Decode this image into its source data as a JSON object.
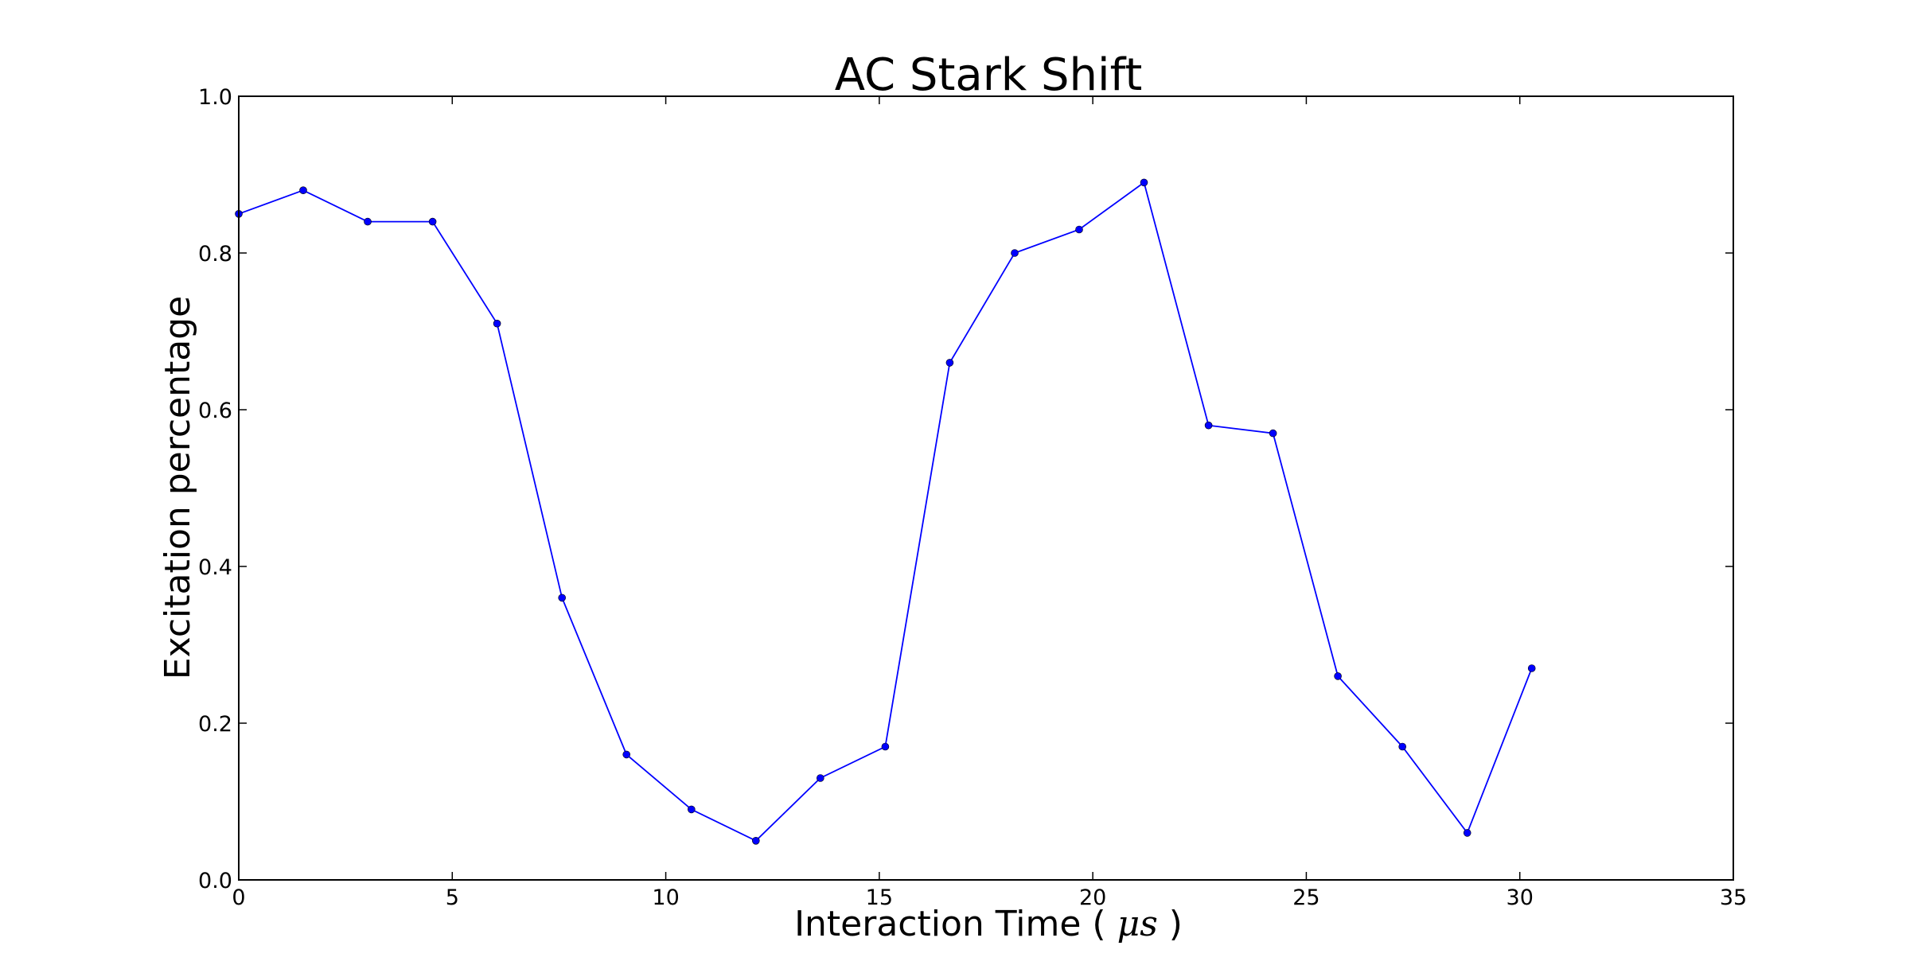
{
  "chart_data": {
    "type": "line",
    "title": "AC Stark Shift",
    "xlabel_prefix": "Interaction Time ( ",
    "xlabel_unit": "μs",
    "xlabel_suffix": " )",
    "ylabel": "Excitation percentage",
    "xlim": [
      0,
      35
    ],
    "ylim": [
      0.0,
      1.0
    ],
    "xticks": [
      "0",
      "5",
      "10",
      "15",
      "20",
      "25",
      "30",
      "35"
    ],
    "yticks": [
      "0.0",
      "0.2",
      "0.4",
      "0.6",
      "0.8",
      "1.0"
    ],
    "grid": false,
    "series": [
      {
        "color": "#0000ff",
        "marker": "circle",
        "x": [
          0.0,
          1.51,
          3.02,
          4.54,
          6.05,
          7.57,
          9.08,
          10.6,
          12.11,
          13.62,
          15.14,
          16.65,
          18.17,
          19.68,
          21.2,
          22.71,
          24.22,
          25.74,
          27.25,
          28.77,
          30.28
        ],
        "y": [
          0.85,
          0.88,
          0.84,
          0.84,
          0.71,
          0.36,
          0.16,
          0.09,
          0.05,
          0.13,
          0.17,
          0.66,
          0.8,
          0.83,
          0.89,
          0.58,
          0.57,
          0.26,
          0.17,
          0.06,
          0.27
        ]
      }
    ]
  }
}
